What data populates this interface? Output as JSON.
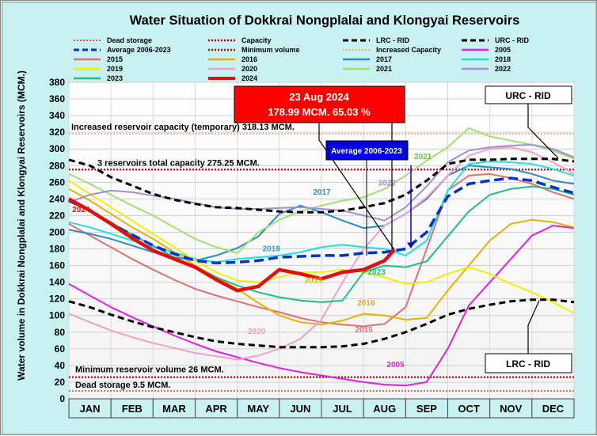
{
  "chart_data": {
    "type": "line",
    "title": "Water Situation of Dokkrai Nongplalai and Klongyai Reservoirs",
    "ylabel": "Water volume in Dokkrai Nongplalai and Klongyai Reservoirs (MCM.)",
    "xlabel": "",
    "ylim": [
      0,
      380
    ],
    "yticks": [
      0,
      20,
      40,
      60,
      80,
      100,
      120,
      140,
      160,
      180,
      200,
      220,
      240,
      260,
      280,
      300,
      320,
      340,
      360,
      380
    ],
    "months": [
      "JAN",
      "FEB",
      "MAR",
      "APR",
      "MAY",
      "JUN",
      "JUL",
      "AUG",
      "SEP",
      "OCT",
      "NOV",
      "DEC"
    ],
    "legend": [
      {
        "label": "Dead storage",
        "color": "#e02020",
        "style": "dotted"
      },
      {
        "label": "Capacity",
        "color": "#c00000",
        "style": "dotted-bold"
      },
      {
        "label": "LRC - RID",
        "color": "#000000",
        "style": "dashed"
      },
      {
        "label": "URC - RID",
        "color": "#000000",
        "style": "dashed"
      },
      {
        "label": "Average 2006-2023",
        "color": "#0033cc",
        "style": "dashed"
      },
      {
        "label": "Minimum volume",
        "color": "#c00000",
        "style": "dotted-bold"
      },
      {
        "label": "Increased Capacity",
        "color": "#f0a040",
        "style": "dotted"
      },
      {
        "label": "2005",
        "color": "#e020e0",
        "style": "solid"
      },
      {
        "label": "2015",
        "color": "#e07070",
        "style": "solid"
      },
      {
        "label": "2016",
        "color": "#e8b000",
        "style": "solid"
      },
      {
        "label": "2017",
        "color": "#2a8ad0",
        "style": "solid"
      },
      {
        "label": "2018",
        "color": "#20e0e0",
        "style": "solid"
      },
      {
        "label": "2019",
        "color": "#f0f000",
        "style": "solid"
      },
      {
        "label": "2020",
        "color": "#f0a0c8",
        "style": "solid"
      },
      {
        "label": "2021",
        "color": "#a0e070",
        "style": "solid"
      },
      {
        "label": "2022",
        "color": "#a090d0",
        "style": "solid"
      },
      {
        "label": "2023",
        "color": "#20c080",
        "style": "solid"
      },
      {
        "label": "2024",
        "color": "#e01010",
        "style": "solid-bold"
      }
    ],
    "reference_lines": [
      {
        "name": "Increased reservoir capacity (temporary)",
        "label": "Increased reservoir capacity (temporary)  318.13 MCM.",
        "value": 318.13
      },
      {
        "name": "3 reservoirs total capacity",
        "label": "3 reservoirs total capacity 275.25 MCM.",
        "value": 275.25
      },
      {
        "name": "Minimum reservoir volume",
        "label": "Minimum reservoir volume 26 MCM.",
        "value": 26
      },
      {
        "name": "Dead storage",
        "label": "Dead storage 9.5 MCM.",
        "value": 9.5
      }
    ],
    "current": {
      "date": "23 Aug 2024",
      "value_text": "178.99 MCM. 65.03 %",
      "value": 178.99,
      "percent": 65.03
    },
    "annotations": {
      "urc": "URC - RID",
      "lrc": "LRC - RID",
      "average": "Average 2006-2023"
    },
    "series": [
      {
        "name": "URC - RID",
        "x": [
          0,
          0.5,
          1,
          1.5,
          2,
          2.5,
          3,
          3.5,
          4,
          4.5,
          5,
          5.5,
          6,
          6.5,
          7,
          7.5,
          8,
          8.5,
          9,
          9.5,
          10,
          10.5,
          11,
          11.5,
          12
        ],
        "values": [
          287,
          280,
          266,
          256,
          246,
          239,
          234,
          230,
          229,
          227,
          225,
          224,
          224,
          226,
          230,
          235,
          245,
          262,
          282,
          287,
          287,
          288,
          288,
          288,
          285
        ]
      },
      {
        "name": "LRC - RID",
        "x": [
          0,
          0.5,
          1,
          1.5,
          2,
          2.5,
          3,
          3.5,
          4,
          4.5,
          5,
          5.5,
          6,
          6.5,
          7,
          7.5,
          8,
          8.5,
          9,
          9.5,
          10,
          10.5,
          11,
          11.5,
          12
        ],
        "values": [
          117,
          110,
          101,
          93,
          86,
          80,
          74,
          69,
          66,
          64,
          62,
          62,
          62,
          63,
          66,
          72,
          80,
          90,
          101,
          108,
          113,
          117,
          119,
          119,
          116
        ]
      },
      {
        "name": "Average 2006-2023",
        "x": [
          0,
          0.5,
          1,
          1.5,
          2,
          2.5,
          3,
          3.5,
          4,
          4.5,
          5,
          5.5,
          6,
          6.5,
          7,
          7.5,
          8,
          8.5,
          9,
          9.5,
          10,
          10.5,
          11,
          11.5,
          12
        ],
        "values": [
          238,
          226,
          210,
          197,
          184,
          174,
          166,
          163,
          164,
          166,
          170,
          171,
          172,
          172,
          175,
          176,
          180,
          200,
          243,
          258,
          262,
          265,
          262,
          254,
          247
        ]
      },
      {
        "name": "2005",
        "x": [
          0,
          0.5,
          1,
          1.5,
          2,
          2.5,
          3,
          3.5,
          4,
          4.5,
          5,
          5.5,
          6,
          6.5,
          7,
          7.5,
          8,
          8.5,
          9,
          9.5,
          10,
          10.5,
          11,
          11.5,
          12
        ],
        "values": [
          138,
          124,
          110,
          98,
          87,
          76,
          66,
          57,
          50,
          43,
          37,
          32,
          28,
          24,
          20,
          17,
          16,
          20,
          60,
          112,
          140,
          168,
          196,
          208,
          205
        ]
      },
      {
        "name": "2015",
        "x": [
          0,
          0.5,
          1,
          1.5,
          2,
          2.5,
          3,
          3.5,
          4,
          4.5,
          5,
          5.5,
          6,
          6.5,
          7,
          7.5,
          8,
          8.5,
          9,
          9.5,
          10,
          10.5,
          11,
          11.5,
          12
        ],
        "values": [
          210,
          196,
          182,
          168,
          155,
          143,
          132,
          124,
          117,
          110,
          104,
          97,
          92,
          89,
          87,
          90,
          110,
          180,
          250,
          268,
          270,
          265,
          258,
          248,
          240
        ]
      },
      {
        "name": "2016",
        "x": [
          0,
          0.5,
          1,
          1.5,
          2,
          2.5,
          3,
          3.5,
          4,
          4.5,
          5,
          5.5,
          6,
          6.5,
          7,
          7.5,
          8,
          8.5,
          9,
          9.5,
          10,
          10.5,
          11,
          11.5,
          12
        ],
        "values": [
          252,
          238,
          222,
          206,
          192,
          176,
          160,
          146,
          132,
          115,
          100,
          92,
          89,
          94,
          102,
          100,
          95,
          97,
          130,
          160,
          190,
          210,
          215,
          212,
          206
        ]
      },
      {
        "name": "2017",
        "x": [
          0,
          0.5,
          1,
          1.5,
          2,
          2.5,
          3,
          3.5,
          4,
          4.5,
          5,
          5.5,
          6,
          6.5,
          7,
          7.5,
          8,
          8.5,
          9,
          9.5,
          10,
          10.5,
          11,
          11.5,
          12
        ],
        "values": [
          203,
          198,
          192,
          184,
          176,
          170,
          166,
          172,
          181,
          195,
          222,
          232,
          224,
          214,
          205,
          208,
          222,
          240,
          268,
          280,
          278,
          276,
          270,
          262,
          258
        ]
      },
      {
        "name": "2018",
        "x": [
          0,
          0.5,
          1,
          1.5,
          2,
          2.5,
          3,
          3.5,
          4,
          4.5,
          5,
          5.5,
          6,
          6.5,
          7,
          7.5,
          8,
          8.5,
          9,
          9.5,
          10,
          10.5,
          11,
          11.5,
          12
        ],
        "values": [
          212,
          206,
          198,
          190,
          182,
          176,
          168,
          164,
          168,
          170,
          172,
          176,
          182,
          185,
          182,
          180,
          172,
          190,
          250,
          282,
          285,
          284,
          282,
          276,
          268
        ]
      },
      {
        "name": "2019",
        "x": [
          0,
          0.5,
          1,
          1.5,
          2,
          2.5,
          3,
          3.5,
          4,
          4.5,
          5,
          5.5,
          6,
          6.5,
          7,
          7.5,
          8,
          8.5,
          9,
          9.5,
          10,
          10.5,
          11,
          11.5,
          12
        ],
        "values": [
          262,
          246,
          230,
          214,
          198,
          182,
          166,
          152,
          142,
          140,
          146,
          152,
          152,
          155,
          152,
          146,
          138,
          140,
          150,
          158,
          150,
          138,
          128,
          116,
          103
        ]
      },
      {
        "name": "2020",
        "x": [
          0,
          0.5,
          1,
          1.5,
          2,
          2.5,
          3,
          3.5,
          4,
          4.5,
          5,
          5.5,
          6,
          6.5,
          7,
          7.5,
          8,
          8.5,
          9,
          9.5,
          10,
          10.5,
          11,
          11.5,
          12
        ],
        "values": [
          102,
          92,
          82,
          74,
          67,
          61,
          55,
          51,
          47,
          52,
          60,
          72,
          95,
          140,
          180,
          208,
          222,
          242,
          268,
          292,
          300,
          302,
          296,
          284,
          270
        ]
      },
      {
        "name": "2021",
        "x": [
          0,
          0.5,
          1,
          1.5,
          2,
          2.5,
          3,
          3.5,
          4,
          4.5,
          5,
          5.5,
          6,
          6.5,
          7,
          7.5,
          8,
          8.5,
          9,
          9.5,
          10,
          10.5,
          11,
          11.5,
          12
        ],
        "values": [
          270,
          258,
          245,
          232,
          220,
          206,
          192,
          182,
          175,
          200,
          215,
          225,
          232,
          238,
          242,
          252,
          268,
          286,
          302,
          325,
          315,
          310,
          305,
          298,
          288
        ]
      },
      {
        "name": "2022",
        "x": [
          0,
          0.5,
          1,
          1.5,
          2,
          2.5,
          3,
          3.5,
          4,
          4.5,
          5,
          5.5,
          6,
          6.5,
          7,
          7.5,
          8,
          8.5,
          9,
          9.5,
          10,
          10.5,
          11,
          11.5,
          12
        ],
        "values": [
          236,
          245,
          250,
          248,
          244,
          240,
          235,
          230,
          228,
          228,
          229,
          230,
          228,
          226,
          220,
          214,
          230,
          255,
          284,
          298,
          302,
          304,
          305,
          300,
          290
        ]
      },
      {
        "name": "2023",
        "x": [
          0,
          0.5,
          1,
          1.5,
          2,
          2.5,
          3,
          3.5,
          4,
          4.5,
          5,
          5.5,
          6,
          6.5,
          7,
          7.5,
          8,
          8.5,
          9,
          9.5,
          10,
          10.5,
          11,
          11.5,
          12
        ],
        "values": [
          240,
          226,
          212,
          197,
          184,
          170,
          158,
          146,
          136,
          128,
          122,
          118,
          116,
          118,
          152,
          160,
          158,
          165,
          195,
          225,
          245,
          252,
          255,
          252,
          245
        ]
      },
      {
        "name": "2024",
        "x": [
          0,
          0.5,
          1,
          1.5,
          2,
          2.5,
          3,
          3.5,
          4,
          4.5,
          5,
          5.5,
          6,
          6.5,
          7,
          7.5,
          7.73
        ],
        "values": [
          240,
          226,
          210,
          193,
          178,
          168,
          158,
          143,
          130,
          135,
          155,
          150,
          144,
          152,
          155,
          166,
          178.99
        ]
      }
    ]
  }
}
